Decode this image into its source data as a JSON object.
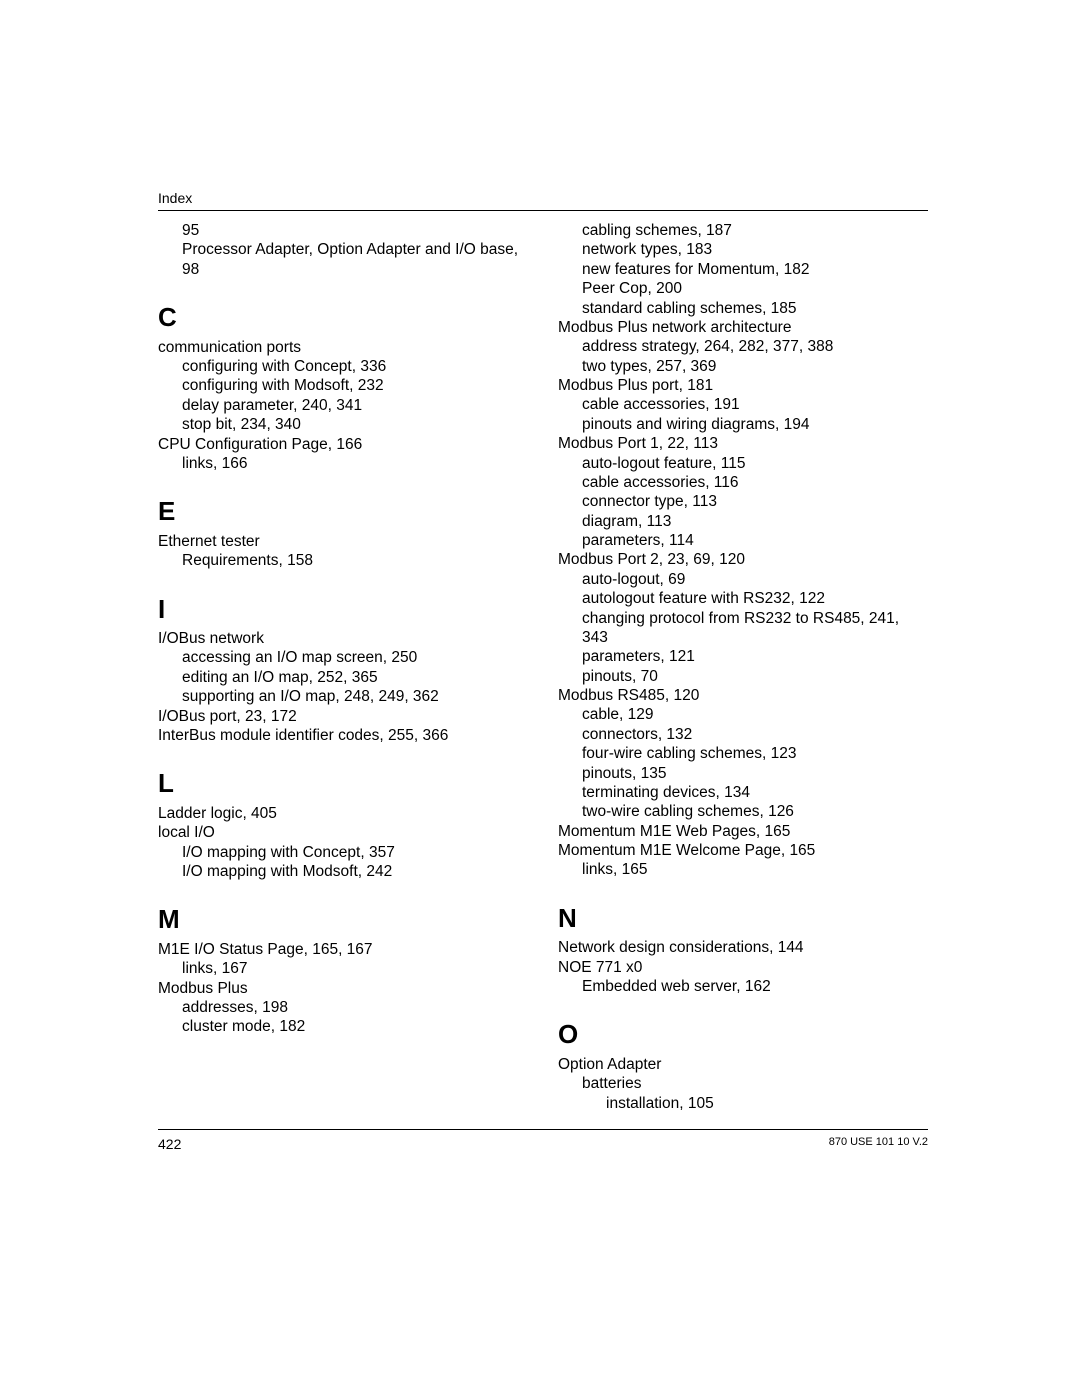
{
  "header": {
    "label": "Index"
  },
  "footer": {
    "pageNumber": "422",
    "docRef": "870 USE 101 10 V.2"
  },
  "leftColumn": [
    {
      "type": "entry",
      "indent": 1,
      "text": "95"
    },
    {
      "type": "entry",
      "indent": 1,
      "text": "Processor Adapter, Option Adapter and I/O base, 98"
    },
    {
      "type": "letter",
      "text": "C"
    },
    {
      "type": "entry",
      "indent": 0,
      "text": "communication ports"
    },
    {
      "type": "entry",
      "indent": 1,
      "text": "configuring with Concept, 336"
    },
    {
      "type": "entry",
      "indent": 1,
      "text": "configuring with Modsoft, 232"
    },
    {
      "type": "entry",
      "indent": 1,
      "text": "delay parameter, 240, 341"
    },
    {
      "type": "entry",
      "indent": 1,
      "text": "stop bit, 234, 340"
    },
    {
      "type": "entry",
      "indent": 0,
      "text": "CPU Configuration Page, 166"
    },
    {
      "type": "entry",
      "indent": 1,
      "text": "links, 166"
    },
    {
      "type": "letter",
      "text": "E"
    },
    {
      "type": "entry",
      "indent": 0,
      "text": "Ethernet tester"
    },
    {
      "type": "entry",
      "indent": 1,
      "text": "Requirements, 158"
    },
    {
      "type": "letter",
      "text": "I"
    },
    {
      "type": "entry",
      "indent": 0,
      "text": "I/OBus network"
    },
    {
      "type": "entry",
      "indent": 1,
      "text": "accessing an I/O map screen, 250"
    },
    {
      "type": "entry",
      "indent": 1,
      "text": "editing an I/O map, 252, 365"
    },
    {
      "type": "entry",
      "indent": 1,
      "text": "supporting an I/O map, 248, 249, 362"
    },
    {
      "type": "entry",
      "indent": 0,
      "text": "I/OBus port, 23, 172"
    },
    {
      "type": "entry",
      "indent": 0,
      "text": "InterBus module identifier codes, 255, 366"
    },
    {
      "type": "letter",
      "text": "L"
    },
    {
      "type": "entry",
      "indent": 0,
      "text": "Ladder logic, 405"
    },
    {
      "type": "entry",
      "indent": 0,
      "text": "local I/O"
    },
    {
      "type": "entry",
      "indent": 1,
      "text": "I/O mapping with Concept, 357"
    },
    {
      "type": "entry",
      "indent": 1,
      "text": "I/O mapping with Modsoft, 242"
    },
    {
      "type": "letter",
      "text": "M"
    },
    {
      "type": "entry",
      "indent": 0,
      "text": "M1E I/O Status Page, 165, 167"
    },
    {
      "type": "entry",
      "indent": 1,
      "text": "links, 167"
    },
    {
      "type": "entry",
      "indent": 0,
      "text": "Modbus Plus"
    },
    {
      "type": "entry",
      "indent": 1,
      "text": "addresses, 198"
    },
    {
      "type": "entry",
      "indent": 1,
      "text": "cluster mode, 182"
    }
  ],
  "rightColumn": [
    {
      "type": "entry",
      "indent": 1,
      "text": "cabling schemes, 187"
    },
    {
      "type": "entry",
      "indent": 1,
      "text": "network types, 183"
    },
    {
      "type": "entry",
      "indent": 1,
      "text": "new features for Momentum, 182"
    },
    {
      "type": "entry",
      "indent": 1,
      "text": "Peer Cop, 200"
    },
    {
      "type": "entry",
      "indent": 1,
      "text": "standard cabling schemes, 185"
    },
    {
      "type": "entry",
      "indent": 0,
      "text": "Modbus Plus network architecture"
    },
    {
      "type": "entry",
      "indent": 1,
      "text": "address strategy, 264, 282, 377, 388"
    },
    {
      "type": "entry",
      "indent": 1,
      "text": "two types, 257, 369"
    },
    {
      "type": "entry",
      "indent": 0,
      "text": "Modbus Plus port, 181"
    },
    {
      "type": "entry",
      "indent": 1,
      "text": "cable accessories, 191"
    },
    {
      "type": "entry",
      "indent": 1,
      "text": "pinouts and wiring diagrams, 194"
    },
    {
      "type": "entry",
      "indent": 0,
      "text": "Modbus Port 1, 22, 113"
    },
    {
      "type": "entry",
      "indent": 1,
      "text": "auto-logout feature, 115"
    },
    {
      "type": "entry",
      "indent": 1,
      "text": "cable accessories, 116"
    },
    {
      "type": "entry",
      "indent": 1,
      "text": "connector type, 113"
    },
    {
      "type": "entry",
      "indent": 1,
      "text": "diagram, 113"
    },
    {
      "type": "entry",
      "indent": 1,
      "text": "parameters, 114"
    },
    {
      "type": "entry",
      "indent": 0,
      "text": "Modbus Port 2, 23, 69, 120"
    },
    {
      "type": "entry",
      "indent": 1,
      "text": "auto-logout, 69"
    },
    {
      "type": "entry",
      "indent": 1,
      "text": "autologout feature with RS232, 122"
    },
    {
      "type": "entry",
      "indent": 1,
      "text": "changing protocol from RS232 to RS485, 241, 343"
    },
    {
      "type": "entry",
      "indent": 1,
      "text": "parameters, 121"
    },
    {
      "type": "entry",
      "indent": 1,
      "text": "pinouts, 70"
    },
    {
      "type": "entry",
      "indent": 0,
      "text": "Modbus RS485, 120"
    },
    {
      "type": "entry",
      "indent": 1,
      "text": "cable, 129"
    },
    {
      "type": "entry",
      "indent": 1,
      "text": "connectors, 132"
    },
    {
      "type": "entry",
      "indent": 1,
      "text": "four-wire cabling schemes, 123"
    },
    {
      "type": "entry",
      "indent": 1,
      "text": "pinouts, 135"
    },
    {
      "type": "entry",
      "indent": 1,
      "text": "terminating devices, 134"
    },
    {
      "type": "entry",
      "indent": 1,
      "text": "two-wire cabling schemes, 126"
    },
    {
      "type": "entry",
      "indent": 0,
      "text": "Momentum M1E Web Pages, 165"
    },
    {
      "type": "entry",
      "indent": 0,
      "text": "Momentum M1E Welcome Page, 165"
    },
    {
      "type": "entry",
      "indent": 1,
      "text": "links, 165"
    },
    {
      "type": "letter",
      "text": "N"
    },
    {
      "type": "entry",
      "indent": 0,
      "text": "Network design considerations, 144"
    },
    {
      "type": "entry",
      "indent": 0,
      "text": "NOE 771 x0"
    },
    {
      "type": "entry",
      "indent": 1,
      "text": "Embedded web server, 162"
    },
    {
      "type": "letter",
      "text": "O"
    },
    {
      "type": "entry",
      "indent": 0,
      "text": "Option Adapter"
    },
    {
      "type": "entry",
      "indent": 1,
      "text": "batteries"
    },
    {
      "type": "entry",
      "indent": 2,
      "text": "installation, 105"
    }
  ]
}
